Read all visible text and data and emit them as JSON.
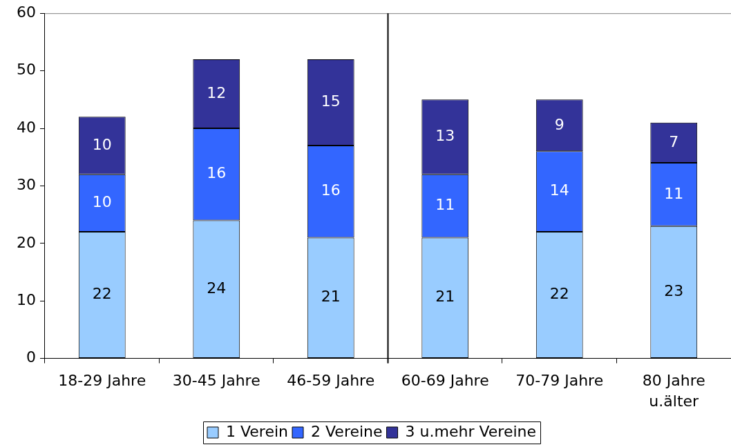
{
  "chart_data": {
    "type": "bar",
    "stacked": true,
    "categories": [
      "18-29 Jahre",
      "30-45 Jahre",
      "46-59 Jahre",
      "60-69 Jahre",
      "70-79 Jahre",
      "80 Jahre u.älter"
    ],
    "series": [
      {
        "name": "1 Verein",
        "color": "#99ccff",
        "values": [
          22,
          24,
          21,
          21,
          22,
          23
        ]
      },
      {
        "name": "2 Vereine",
        "color": "#3366ff",
        "values": [
          10,
          16,
          16,
          11,
          14,
          11
        ]
      },
      {
        "name": "3 u.mehr Vereine",
        "color": "#333399",
        "values": [
          10,
          12,
          15,
          13,
          9,
          7
        ]
      }
    ],
    "ylim": [
      0,
      60
    ],
    "yticks": [
      0,
      10,
      20,
      30,
      40,
      50,
      60
    ],
    "grid": false,
    "legend": "bottom",
    "data_labels": true
  }
}
